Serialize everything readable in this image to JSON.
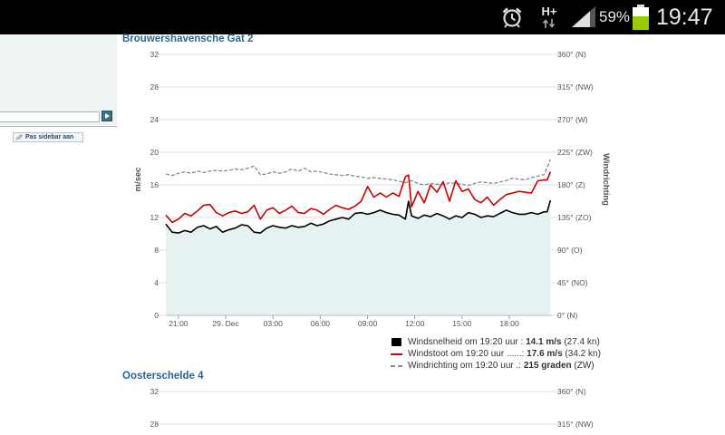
{
  "status_bar": {
    "network": "H+",
    "battery": "59%",
    "time": "19:47",
    "icons": [
      "alarm-clock-icon",
      "network-activity-icon",
      "signal-strength-icon",
      "battery-icon"
    ]
  },
  "sidebar": {
    "button_label": "Pas sidebar aan"
  },
  "colors": {
    "title": "#2a6496",
    "wind_speed": "#000000",
    "gust": "#cc0000",
    "direction": "#888888",
    "area_fill": "#e6f1f1"
  },
  "chart_data": [
    {
      "type": "line",
      "title": "Brouwershavensche Gat 2",
      "ylabel": "m/sec",
      "ylabel_right": "Windrichting",
      "ylim": [
        0,
        32
      ],
      "ylim_right": [
        0,
        360
      ],
      "yticks": [
        "0",
        "4",
        "8",
        "12",
        "16",
        "20",
        "24",
        "28",
        "32"
      ],
      "yticks_right": [
        "0° (N)",
        "45° (NO)",
        "90° (O)",
        "135° (ZO)",
        "180° (Z)",
        "225° (ZW)",
        "270° (W)",
        "315° (NW)",
        "360° (N)"
      ],
      "xlim": [
        20.2,
        44.7
      ],
      "xticks": [
        {
          "x": 21,
          "label": "21:00"
        },
        {
          "x": 24,
          "label": "29. Dec"
        },
        {
          "x": 27,
          "label": "03:00"
        },
        {
          "x": 30,
          "label": "06:00"
        },
        {
          "x": 33,
          "label": "09:00"
        },
        {
          "x": 36,
          "label": "12:00"
        },
        {
          "x": 39,
          "label": "15:00"
        },
        {
          "x": 42,
          "label": "18:00"
        }
      ],
      "grid": true,
      "series": [
        {
          "name": "Windsnelheid",
          "axis": "left",
          "style": "solid",
          "area": true,
          "points": [
            [
              20.2,
              11.2
            ],
            [
              20.6,
              10.2
            ],
            [
              21.0,
              10.1
            ],
            [
              21.4,
              10.4
            ],
            [
              21.8,
              10.2
            ],
            [
              22.2,
              10.8
            ],
            [
              22.6,
              11.0
            ],
            [
              23.0,
              10.6
            ],
            [
              23.4,
              10.9
            ],
            [
              23.8,
              10.2
            ],
            [
              24.2,
              10.5
            ],
            [
              24.6,
              10.7
            ],
            [
              25.0,
              11.1
            ],
            [
              25.4,
              11.0
            ],
            [
              25.8,
              10.2
            ],
            [
              26.2,
              10.1
            ],
            [
              26.6,
              10.7
            ],
            [
              27.0,
              11.0
            ],
            [
              27.4,
              10.8
            ],
            [
              27.8,
              10.7
            ],
            [
              28.2,
              11.0
            ],
            [
              28.6,
              10.8
            ],
            [
              29.0,
              10.9
            ],
            [
              29.4,
              11.3
            ],
            [
              29.8,
              11.0
            ],
            [
              30.2,
              11.2
            ],
            [
              30.6,
              11.6
            ],
            [
              31.0,
              11.8
            ],
            [
              31.4,
              12.0
            ],
            [
              31.8,
              11.8
            ],
            [
              32.2,
              12.5
            ],
            [
              32.6,
              12.6
            ],
            [
              33.0,
              12.4
            ],
            [
              33.4,
              12.6
            ],
            [
              33.8,
              12.9
            ],
            [
              34.2,
              12.6
            ],
            [
              34.6,
              12.4
            ],
            [
              35.0,
              12.3
            ],
            [
              35.4,
              11.8
            ],
            [
              35.6,
              14.0
            ],
            [
              35.8,
              12.2
            ],
            [
              36.2,
              11.9
            ],
            [
              36.6,
              12.3
            ],
            [
              37.0,
              12.1
            ],
            [
              37.4,
              12.5
            ],
            [
              37.8,
              12.2
            ],
            [
              38.2,
              11.8
            ],
            [
              38.6,
              12.2
            ],
            [
              39.0,
              12.0
            ],
            [
              39.4,
              12.6
            ],
            [
              39.8,
              12.4
            ],
            [
              40.2,
              12.0
            ],
            [
              40.6,
              12.2
            ],
            [
              41.0,
              12.1
            ],
            [
              41.4,
              12.5
            ],
            [
              41.8,
              12.9
            ],
            [
              42.2,
              12.6
            ],
            [
              42.6,
              12.4
            ],
            [
              43.0,
              12.4
            ],
            [
              43.4,
              12.6
            ],
            [
              43.8,
              12.4
            ],
            [
              44.2,
              12.7
            ],
            [
              44.4,
              12.7
            ],
            [
              44.6,
              14.1
            ]
          ]
        },
        {
          "name": "Windstoot",
          "axis": "left",
          "style": "solid",
          "points": [
            [
              20.2,
              12.3
            ],
            [
              20.6,
              11.4
            ],
            [
              21.0,
              11.8
            ],
            [
              21.4,
              12.5
            ],
            [
              21.8,
              12.2
            ],
            [
              22.2,
              12.8
            ],
            [
              22.6,
              13.5
            ],
            [
              23.0,
              13.6
            ],
            [
              23.4,
              12.6
            ],
            [
              23.8,
              12.2
            ],
            [
              24.2,
              12.6
            ],
            [
              24.6,
              12.8
            ],
            [
              25.0,
              12.5
            ],
            [
              25.4,
              12.7
            ],
            [
              25.8,
              13.5
            ],
            [
              26.2,
              11.8
            ],
            [
              26.6,
              12.9
            ],
            [
              27.0,
              13.2
            ],
            [
              27.4,
              12.5
            ],
            [
              27.8,
              12.9
            ],
            [
              28.2,
              13.4
            ],
            [
              28.6,
              12.6
            ],
            [
              29.0,
              12.5
            ],
            [
              29.4,
              13.1
            ],
            [
              29.8,
              12.9
            ],
            [
              30.2,
              12.4
            ],
            [
              30.6,
              13.0
            ],
            [
              31.0,
              13.5
            ],
            [
              31.4,
              13.2
            ],
            [
              31.8,
              13.0
            ],
            [
              32.2,
              13.4
            ],
            [
              32.6,
              14.0
            ],
            [
              33.0,
              15.8
            ],
            [
              33.4,
              14.5
            ],
            [
              33.8,
              15.0
            ],
            [
              34.2,
              14.5
            ],
            [
              34.6,
              15.0
            ],
            [
              35.0,
              14.6
            ],
            [
              35.4,
              17.0
            ],
            [
              35.6,
              17.2
            ],
            [
              35.8,
              13.3
            ],
            [
              36.2,
              15.2
            ],
            [
              36.6,
              13.8
            ],
            [
              37.0,
              16.0
            ],
            [
              37.4,
              15.1
            ],
            [
              37.8,
              16.4
            ],
            [
              38.2,
              14.0
            ],
            [
              38.6,
              16.5
            ],
            [
              39.0,
              15.2
            ],
            [
              39.4,
              15.5
            ],
            [
              39.8,
              14.2
            ],
            [
              40.2,
              13.8
            ],
            [
              40.6,
              14.5
            ],
            [
              41.0,
              13.5
            ],
            [
              41.4,
              14.2
            ],
            [
              41.8,
              14.8
            ],
            [
              42.2,
              15.0
            ],
            [
              42.6,
              15.2
            ],
            [
              43.0,
              15.1
            ],
            [
              43.4,
              15.0
            ],
            [
              43.8,
              16.5
            ],
            [
              44.2,
              16.6
            ],
            [
              44.4,
              16.6
            ],
            [
              44.6,
              17.6
            ]
          ]
        },
        {
          "name": "Windrichting",
          "axis": "right",
          "style": "dashed",
          "points": [
            [
              20.2,
              195
            ],
            [
              20.6,
              193
            ],
            [
              21.0,
              196
            ],
            [
              21.4,
              198
            ],
            [
              21.8,
              196
            ],
            [
              22.2,
              199
            ],
            [
              22.6,
              197
            ],
            [
              23.0,
              199
            ],
            [
              23.4,
              200
            ],
            [
              23.8,
              199
            ],
            [
              24.2,
              200
            ],
            [
              24.6,
              202
            ],
            [
              25.0,
              201
            ],
            [
              25.4,
              203
            ],
            [
              25.8,
              206
            ],
            [
              26.2,
              194
            ],
            [
              26.6,
              195
            ],
            [
              27.0,
              198
            ],
            [
              27.4,
              196
            ],
            [
              27.8,
              198
            ],
            [
              28.2,
              202
            ],
            [
              28.6,
              199
            ],
            [
              29.0,
              203
            ],
            [
              29.4,
              198
            ],
            [
              29.8,
              199
            ],
            [
              30.2,
              197
            ],
            [
              30.6,
              195
            ],
            [
              31.0,
              194
            ],
            [
              31.4,
              193
            ],
            [
              31.8,
              194
            ],
            [
              32.2,
              192
            ],
            [
              32.6,
              191
            ],
            [
              33.0,
              189
            ],
            [
              33.4,
              190
            ],
            [
              33.8,
              189
            ],
            [
              34.2,
              188
            ],
            [
              34.6,
              187
            ],
            [
              35.0,
              185
            ],
            [
              35.4,
              183
            ],
            [
              35.8,
              186
            ],
            [
              36.2,
              182
            ],
            [
              36.6,
              180
            ],
            [
              37.0,
              182
            ],
            [
              37.4,
              181
            ],
            [
              37.8,
              180
            ],
            [
              38.2,
              183
            ],
            [
              38.6,
              182
            ],
            [
              39.0,
              181
            ],
            [
              39.4,
              179
            ],
            [
              39.8,
              182
            ],
            [
              40.2,
              184
            ],
            [
              40.6,
              183
            ],
            [
              41.0,
              182
            ],
            [
              41.4,
              184
            ],
            [
              41.8,
              186
            ],
            [
              42.2,
              189
            ],
            [
              42.6,
              188
            ],
            [
              43.0,
              187
            ],
            [
              43.4,
              190
            ],
            [
              43.8,
              192
            ],
            [
              44.2,
              194
            ],
            [
              44.4,
              204
            ],
            [
              44.6,
              215
            ]
          ]
        }
      ],
      "legend": [
        {
          "text": "Windsnelheid om 19:20 uur : ",
          "value": "14.1 m/s",
          "extra": " (27.4 kn)",
          "color": "#000000",
          "style": "solid-box"
        },
        {
          "text": "Windstoot om 19:20 uur ......: ",
          "value": "17.6 m/s",
          "extra": " (34.2 kn)",
          "color": "#cc0000",
          "style": "line"
        },
        {
          "text": "Windrichting om 19:20 uur .: ",
          "value": "215 graden",
          "extra": " (ZW)",
          "color": "#888888",
          "style": "dashed"
        }
      ]
    },
    {
      "type": "line",
      "title": "Oosterschelde 4",
      "ylim": [
        0,
        32
      ],
      "ylim_right": [
        0,
        360
      ],
      "grid": true,
      "visible_yticks": [
        "28",
        "32"
      ],
      "visible_yticks_right": [
        "315° (NW)",
        "360° (N)"
      ],
      "series": []
    }
  ]
}
